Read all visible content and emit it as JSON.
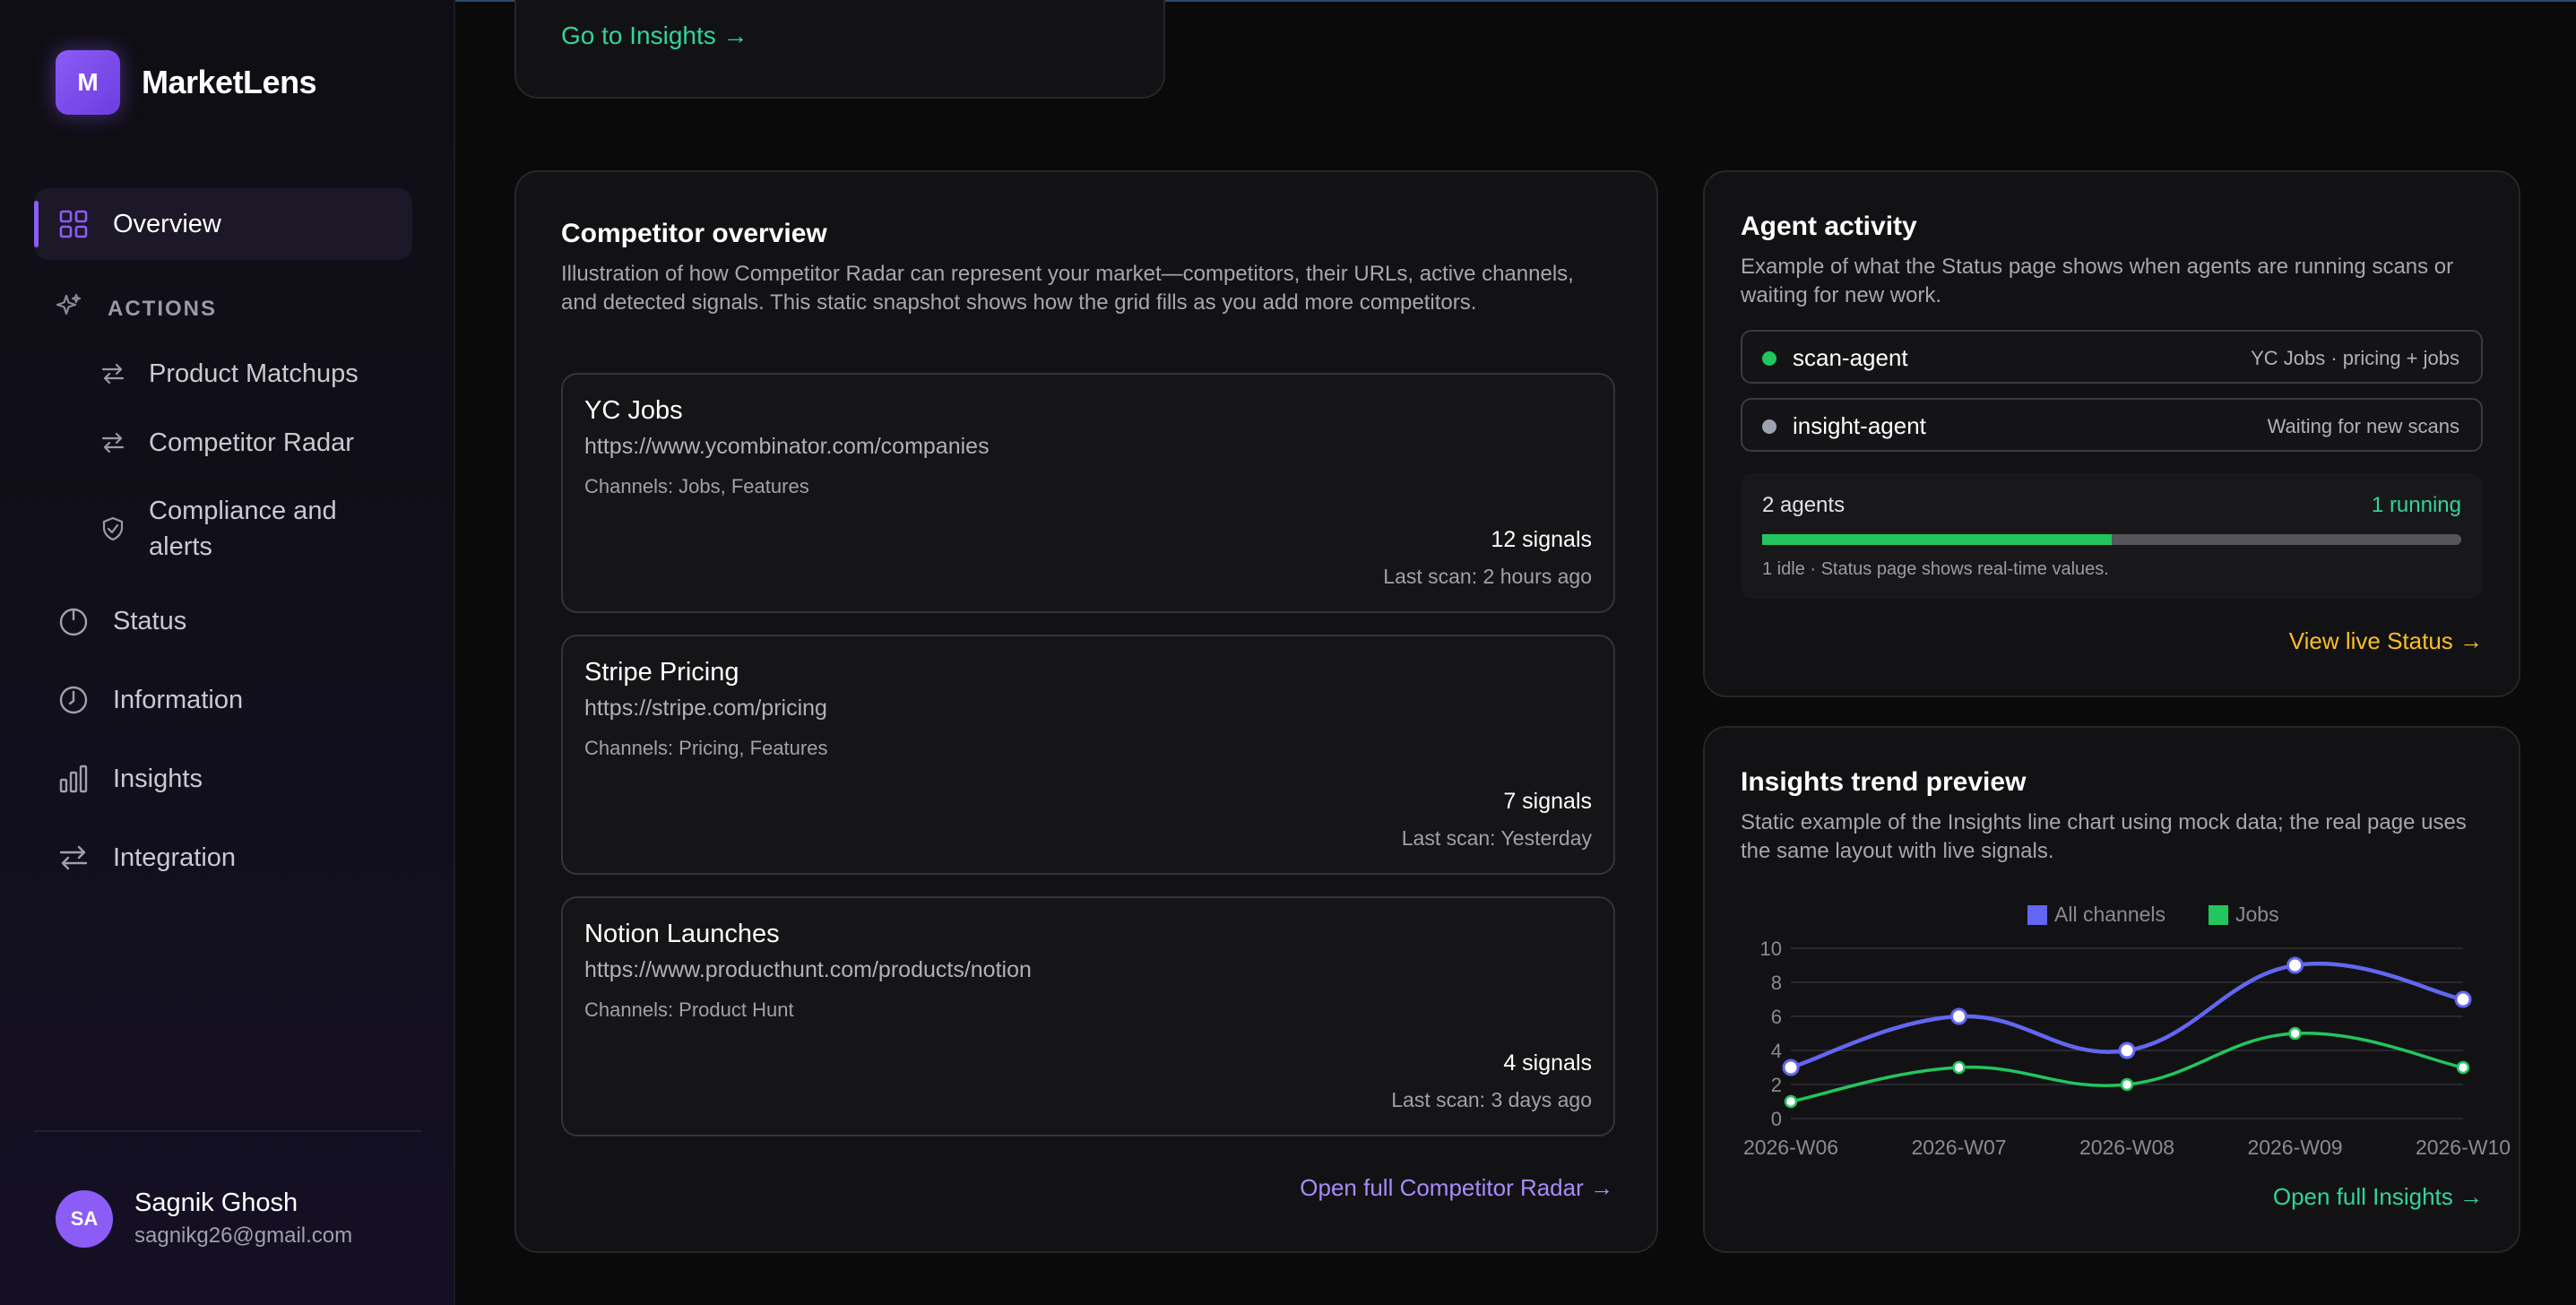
{
  "app": {
    "name": "MarketLens",
    "logo_letter": "M"
  },
  "sidebar": {
    "overview": "Overview",
    "actions_label": "ACTIONS",
    "actions": [
      {
        "label": "Product Matchups",
        "icon": "arrows-swap-icon"
      },
      {
        "label": "Competitor Radar",
        "icon": "arrows-swap-icon"
      },
      {
        "label": "Compliance and alerts",
        "icon": "shield-check-icon"
      }
    ],
    "status": "Status",
    "information": "Information",
    "insights": "Insights",
    "integration": "Integration"
  },
  "user": {
    "initials": "SA",
    "name": "Sagnik Ghosh",
    "email": "sagnikg26@gmail.com"
  },
  "top_card": {
    "link": "Go to Insights →"
  },
  "competitor_overview": {
    "title": "Competitor overview",
    "description": "Illustration of how Competitor Radar can represent your market—competitors, their URLs, active channels, and detected signals. This static snapshot shows how the grid fills as you add more competitors.",
    "items": [
      {
        "name": "YC Jobs",
        "url": "https://www.ycombinator.com/companies",
        "channels": "Channels: Jobs, Features",
        "signals": "12 signals",
        "last_scan": "Last scan: 2 hours ago"
      },
      {
        "name": "Stripe Pricing",
        "url": "https://stripe.com/pricing",
        "channels": "Channels: Pricing, Features",
        "signals": "7 signals",
        "last_scan": "Last scan: Yesterday"
      },
      {
        "name": "Notion Launches",
        "url": "https://www.producthunt.com/products/notion",
        "channels": "Channels: Product Hunt",
        "signals": "4 signals",
        "last_scan": "Last scan: 3 days ago"
      }
    ],
    "link": "Open full Competitor Radar →"
  },
  "agent_activity": {
    "title": "Agent activity",
    "description": "Example of what the Status page shows when agents are running scans or waiting for new work.",
    "agents": [
      {
        "name": "scan-agent",
        "detail": "YC Jobs · pricing + jobs",
        "status_color": "#22c55e"
      },
      {
        "name": "insight-agent",
        "detail": "Waiting for new scans",
        "status_color": "#9ca3af"
      }
    ],
    "summary_count": "2 agents",
    "summary_running": "1 running",
    "running_fraction": 0.5,
    "note": "1 idle · Status page shows real-time values.",
    "link": "View live Status →"
  },
  "insights_preview": {
    "title": "Insights trend preview",
    "description": "Static example of the Insights line chart using mock data; the real page uses the same layout with live signals.",
    "link": "Open full Insights →"
  },
  "chart_data": {
    "type": "line",
    "categories": [
      "2026-W06",
      "2026-W07",
      "2026-W08",
      "2026-W09",
      "2026-W10"
    ],
    "series": [
      {
        "name": "All channels",
        "values": [
          3,
          6,
          4,
          9,
          7
        ],
        "color": "#6366f1"
      },
      {
        "name": "Jobs",
        "values": [
          1,
          3,
          2,
          5,
          3
        ],
        "color": "#22c55e"
      }
    ],
    "ylim": [
      0,
      10
    ],
    "yticks": [
      0,
      2,
      4,
      6,
      8,
      10
    ],
    "legend": "top-center",
    "grid": true,
    "smooth": true
  }
}
